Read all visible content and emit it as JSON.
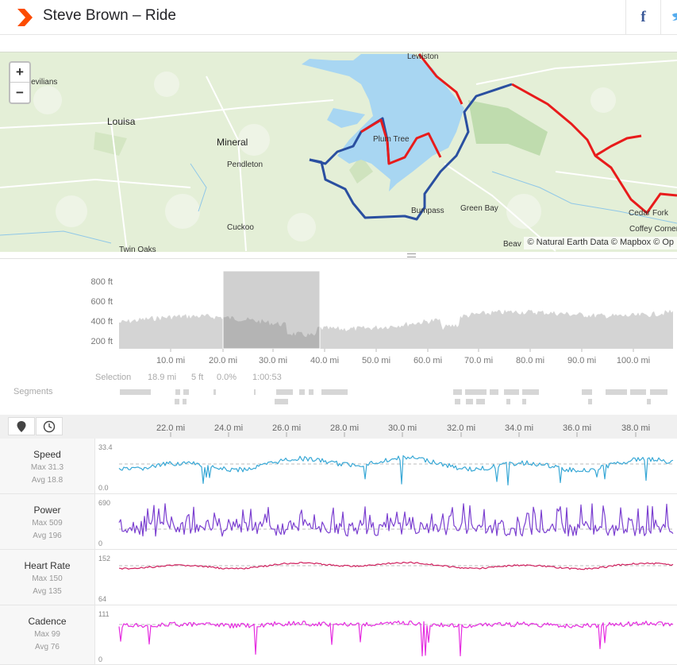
{
  "header": {
    "title": "Steve Brown – Ride",
    "facebook_label": "f"
  },
  "map": {
    "zoom_in": "+",
    "zoom_out": "−",
    "attribution": "© Natural Earth Data © Mapbox © Op",
    "labels": [
      {
        "text": "Lewiston"
      },
      {
        "text": "Louisa",
        "big": true
      },
      {
        "text": "Mineral",
        "big": true
      },
      {
        "text": "Pendleton"
      },
      {
        "text": "Plum Tree"
      },
      {
        "text": "Bumpass"
      },
      {
        "text": "Green Bay"
      },
      {
        "text": "Cuckoo"
      },
      {
        "text": "Cedar Fork"
      },
      {
        "text": "Coffey Corner"
      },
      {
        "text": "Twin Oaks"
      },
      {
        "text": "Trevilians"
      },
      {
        "text": "Beav"
      }
    ]
  },
  "elevation": {
    "y_ticks": [
      "800 ft",
      "600 ft",
      "400 ft",
      "200 ft"
    ],
    "x_ticks": [
      "10.0 mi",
      "20.0 mi",
      "30.0 mi",
      "40.0 mi",
      "50.0 mi",
      "60.0 mi",
      "70.0 mi",
      "80.0 mi",
      "90.0 mi",
      "100.0 mi"
    ],
    "selection": {
      "label": "Selection",
      "distance": "18.9 mi",
      "elevation": "5 ft",
      "grade": "0.0%",
      "time": "1:00:53"
    },
    "segments_label": "Segments"
  },
  "streams": {
    "x_ticks": [
      "22.0 mi",
      "24.0 mi",
      "26.0 mi",
      "28.0 mi",
      "30.0 mi",
      "32.0 mi",
      "34.0 mi",
      "36.0 mi",
      "38.0 mi"
    ],
    "rows": [
      {
        "name": "Speed",
        "max": "Max 31.3",
        "avg": "Avg 18.8",
        "top": "33.4",
        "bottom": "0.0",
        "color": "#38a8d6"
      },
      {
        "name": "Power",
        "max": "Max 509",
        "avg": "Avg 196",
        "top": "690",
        "bottom": "0",
        "color": "#7b3fd0"
      },
      {
        "name": "Heart Rate",
        "max": "Max 150",
        "avg": "Avg 135",
        "top": "152",
        "bottom": "64",
        "color": "#d0215f"
      },
      {
        "name": "Cadence",
        "max": "Max 99",
        "avg": "Avg 76",
        "top": "111",
        "bottom": "0",
        "color": "#e52de0"
      }
    ]
  },
  "colors": {
    "brand": "#fc4c02",
    "route_red": "#e81b1b",
    "route_blue": "#2a4fa0",
    "water": "#a8d6f2"
  }
}
